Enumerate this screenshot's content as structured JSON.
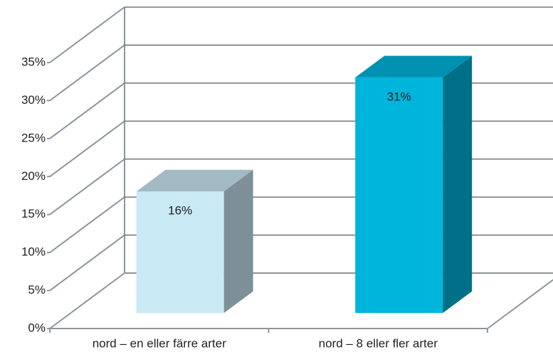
{
  "chart_data": {
    "type": "bar3d",
    "categories": [
      "nord – en eller färre arter",
      "nord – 8 eller fler arter"
    ],
    "values": [
      16,
      31
    ],
    "value_labels": [
      "16%",
      "31%"
    ],
    "colors": [
      "#c9e9f4",
      "#00b5dc"
    ],
    "ylim": [
      0,
      35
    ],
    "yticks": [
      {
        "value": 0,
        "label": "0%"
      },
      {
        "value": 5,
        "label": "5%"
      },
      {
        "value": 10,
        "label": "10%"
      },
      {
        "value": 15,
        "label": "15%"
      },
      {
        "value": 20,
        "label": "20%"
      },
      {
        "value": 25,
        "label": "25%"
      },
      {
        "value": 30,
        "label": "30%"
      },
      {
        "value": 35,
        "label": "35%"
      }
    ],
    "grid": true
  }
}
